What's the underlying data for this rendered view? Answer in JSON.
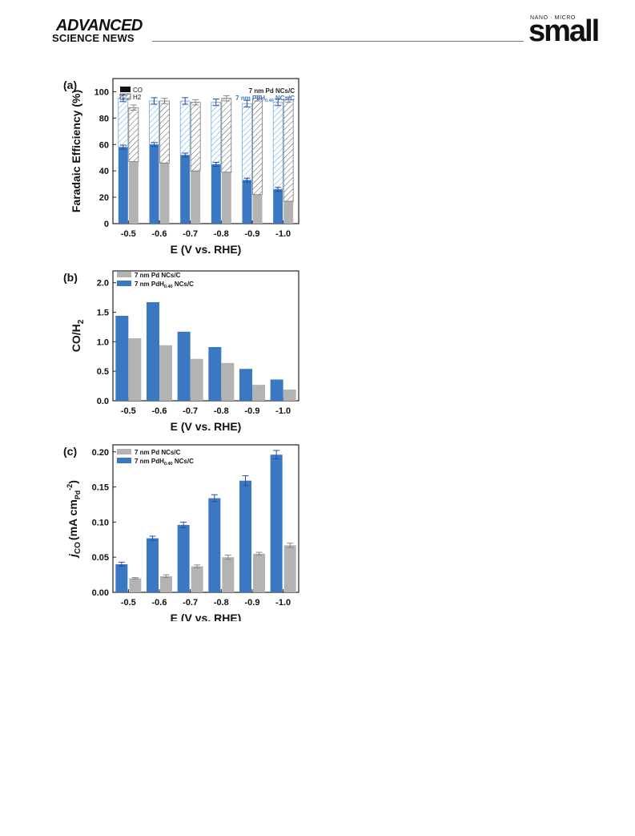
{
  "header": {
    "brand_line1": "ADVANCED",
    "brand_line2": "SCIENCE NEWS",
    "journal_tag": "NANO · MICRO",
    "journal_name": "small"
  },
  "colors": {
    "pd": "#b3b3b3",
    "pdh": "#3a78c4",
    "pdh_hatch": "#5aa0d8",
    "pd_hatch": "#555555",
    "error_pdh": "#2c4a9a",
    "error_pd": "#888888"
  },
  "chart_data": [
    {
      "panel": "(a)",
      "type": "bar",
      "stacked": true,
      "categories": [
        "-0.5",
        "-0.6",
        "-0.7",
        "-0.8",
        "-0.9",
        "-1.0"
      ],
      "series": [
        {
          "name": "7 nm PdH0.40 NCs/C",
          "co": [
            58,
            60,
            52,
            45,
            33,
            26
          ],
          "h2": [
            37,
            33,
            41,
            47,
            58,
            66
          ],
          "total": [
            95,
            93,
            93,
            92,
            91,
            92
          ]
        },
        {
          "name": "7 nm Pd NCs/C",
          "co": [
            47,
            46,
            40,
            39,
            22,
            17
          ],
          "h2": [
            41,
            47,
            52,
            56,
            73,
            77
          ],
          "total": [
            88,
            93,
            92,
            95,
            95,
            94
          ]
        }
      ],
      "legend_products": [
        "CO",
        "H2"
      ],
      "legend_product_sub": "2",
      "legend_series": [
        "7 nm Pd NCs/C",
        "7 nm PdH",
        "0.40",
        " NCs/C"
      ],
      "xlabel": "E (V vs. RHE)",
      "ylabel": "Faradaic Efficiency (%)",
      "ylim": [
        0,
        110
      ],
      "yticks": [
        "0",
        "20",
        "40",
        "60",
        "80",
        "100"
      ],
      "ytick_values": [
        0,
        20,
        40,
        60,
        80,
        100
      ]
    },
    {
      "panel": "(b)",
      "type": "bar",
      "categories": [
        "-0.5",
        "-0.6",
        "-0.7",
        "-0.8",
        "-0.9",
        "-1.0"
      ],
      "series": [
        {
          "name": "7 nm PdH0.40 NCs/C",
          "values": [
            1.44,
            1.67,
            1.17,
            0.91,
            0.54,
            0.36
          ]
        },
        {
          "name": "7 nm Pd NCs/C",
          "values": [
            1.06,
            0.94,
            0.71,
            0.64,
            0.27,
            0.19
          ]
        }
      ],
      "legend": [
        "7 nm Pd NCs/C",
        "7 nm PdH",
        "0.40",
        " NCs/C"
      ],
      "xlabel": "E (V vs. RHE)",
      "ylabel": "CO/H",
      "ylabel_sub": "2",
      "ylim": [
        0,
        2.2
      ],
      "yticks": [
        "0.0",
        "0.5",
        "1.0",
        "1.5",
        "2.0"
      ],
      "ytick_values": [
        0,
        0.5,
        1.0,
        1.5,
        2.0
      ]
    },
    {
      "panel": "(c)",
      "type": "bar",
      "categories": [
        "-0.5",
        "-0.6",
        "-0.7",
        "-0.8",
        "-0.9",
        "-1.0"
      ],
      "series": [
        {
          "name": "7 nm PdH0.40 NCs/C",
          "values": [
            0.04,
            0.077,
            0.096,
            0.134,
            0.159,
            0.196
          ],
          "errors": [
            0.003,
            0.003,
            0.004,
            0.005,
            0.007,
            0.006
          ]
        },
        {
          "name": "7 nm Pd NCs/C",
          "values": [
            0.02,
            0.023,
            0.037,
            0.05,
            0.055,
            0.067
          ],
          "errors": [
            0.001,
            0.002,
            0.002,
            0.003,
            0.002,
            0.003
          ]
        }
      ],
      "legend": [
        "7 nm Pd NCs/C",
        "7 nm PdH",
        "0.40",
        " NCs/C"
      ],
      "xlabel": "E (V vs. RHE)",
      "ylabel_parts": [
        "j",
        "CO",
        "(mA cm",
        "Pd",
        "-2",
        ")"
      ],
      "ylim": [
        0,
        0.21
      ],
      "yticks": [
        "0.00",
        "0.05",
        "0.10",
        "0.15",
        "0.20"
      ],
      "ytick_values": [
        0,
        0.05,
        0.1,
        0.15,
        0.2
      ]
    }
  ]
}
